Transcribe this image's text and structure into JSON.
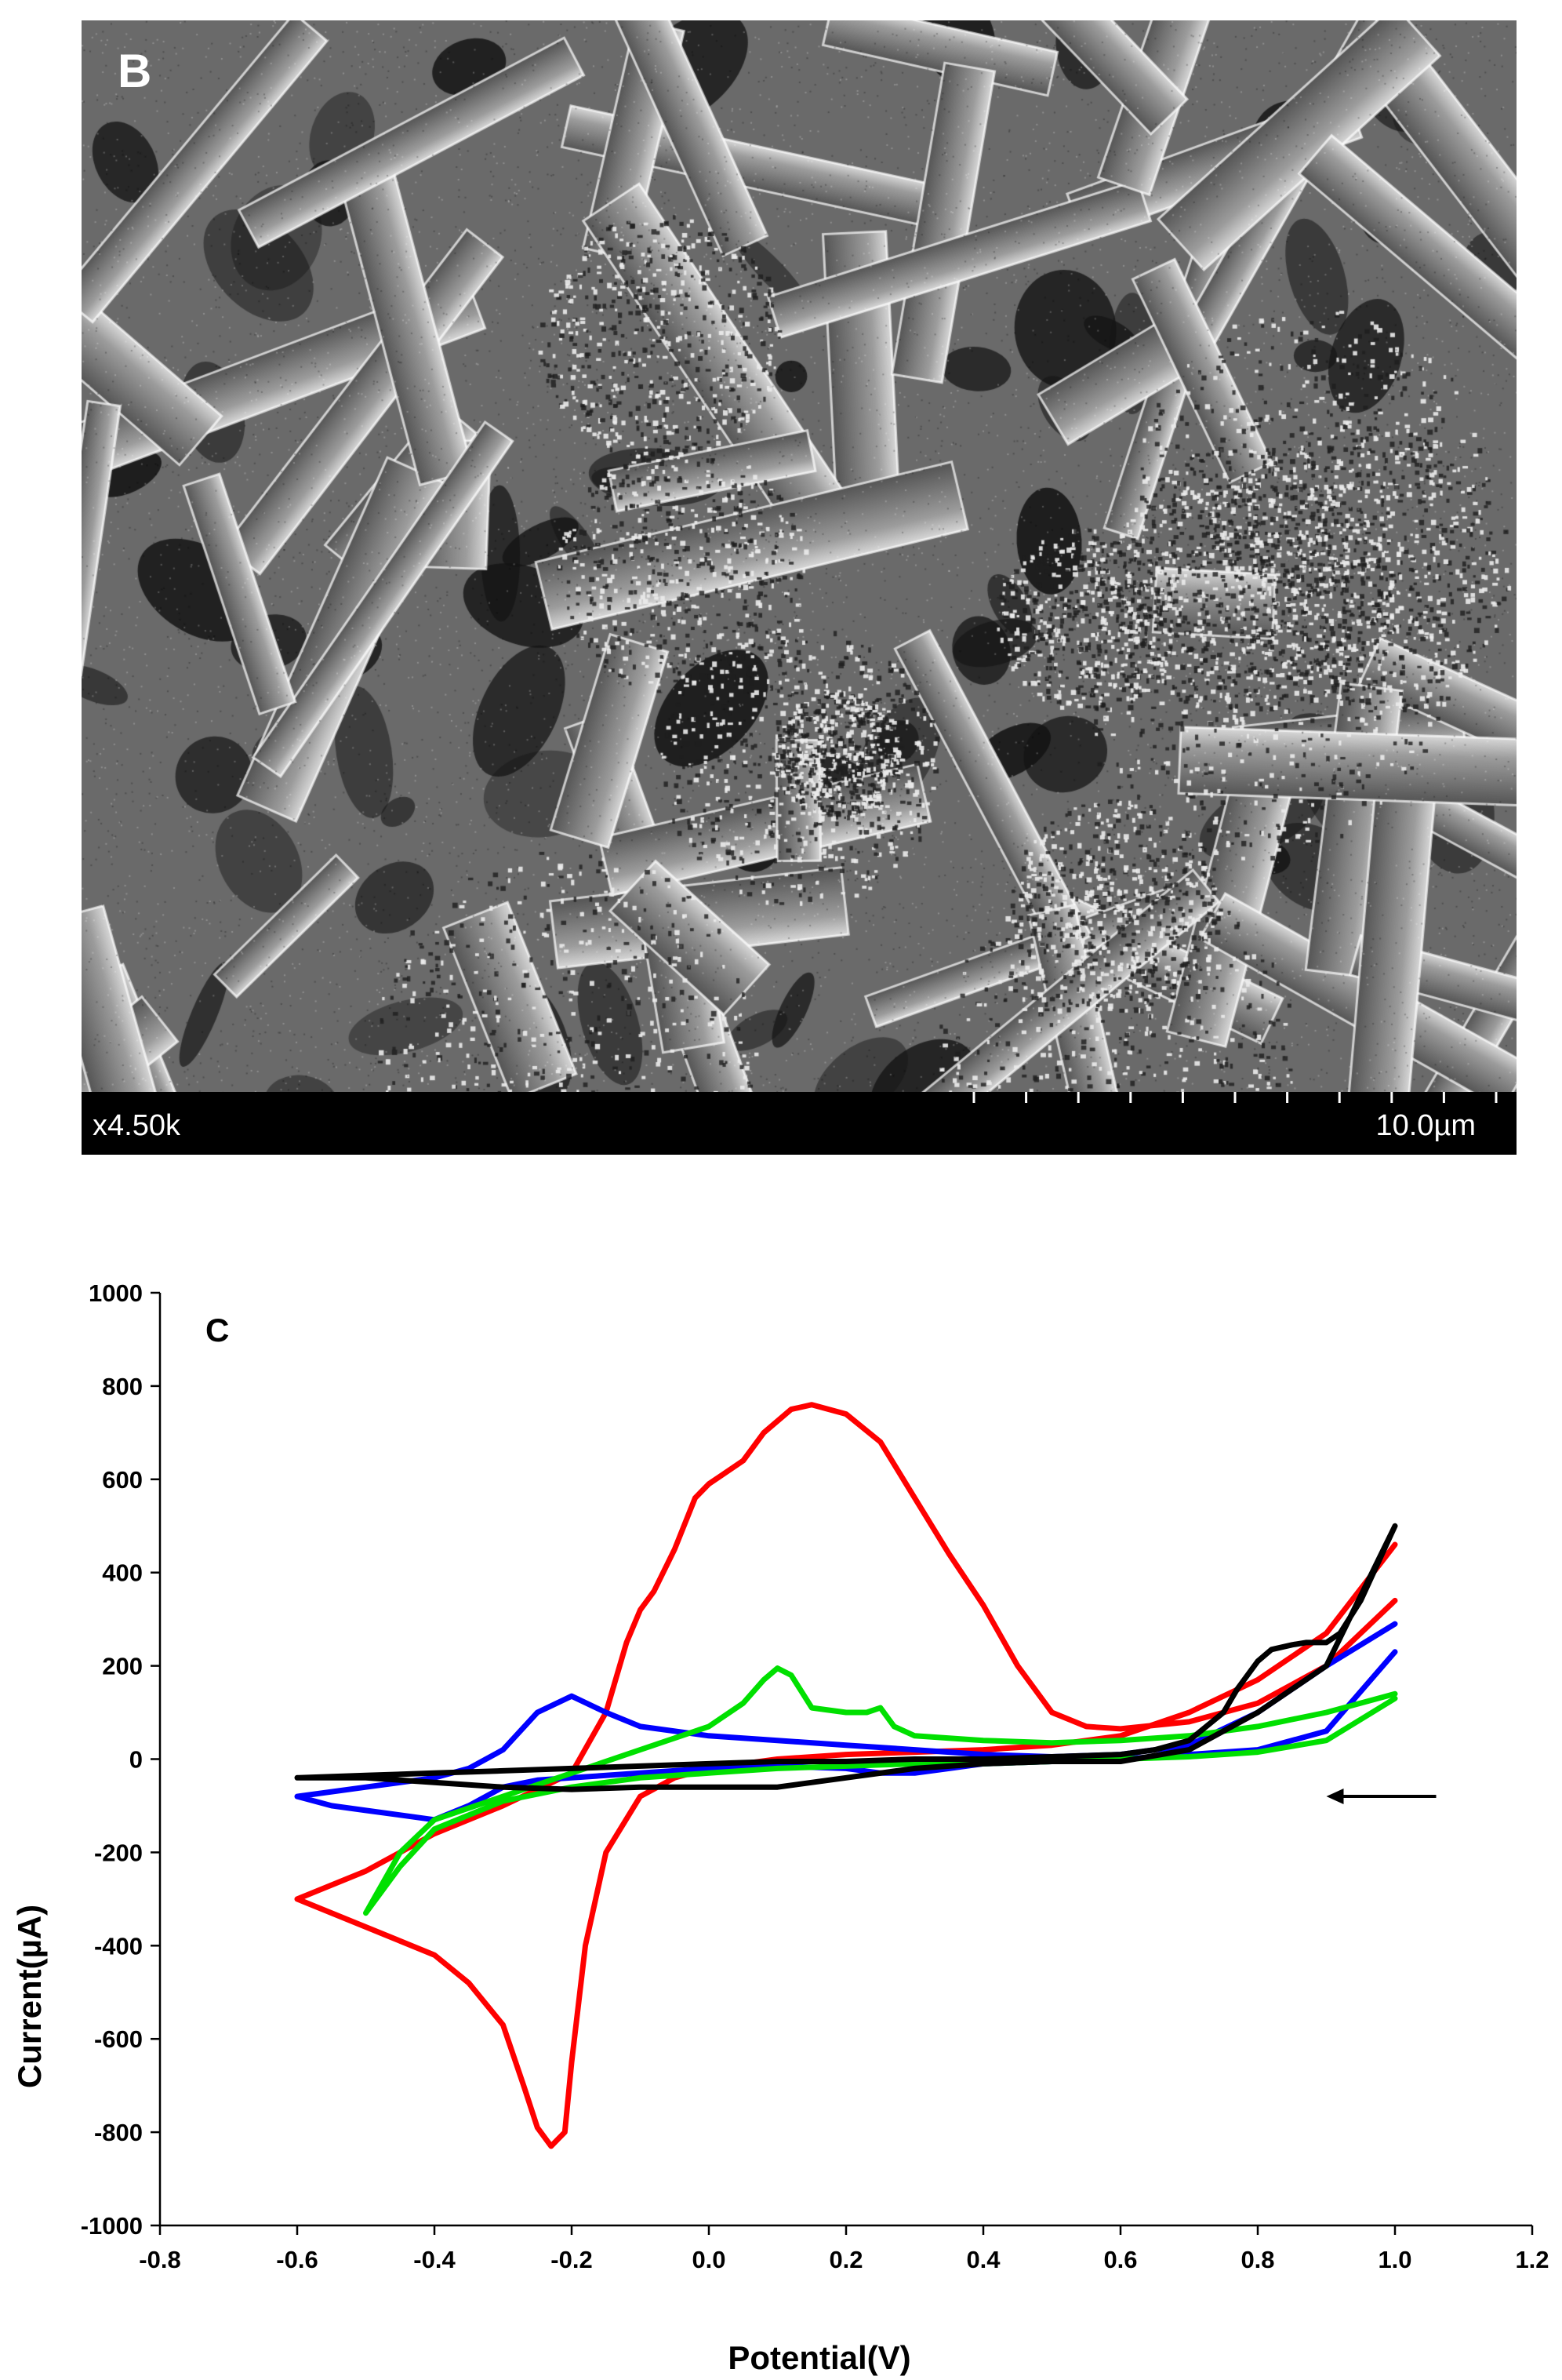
{
  "panel_b": {
    "letter": "B",
    "magnification": "x4.50k",
    "scale_bar_label": "10.0µm"
  },
  "chart_data": {
    "type": "line",
    "panel_label": "C",
    "title": "",
    "xlabel": "Potential(V)",
    "ylabel": "Current(µA)",
    "xlim": [
      -0.8,
      1.2
    ],
    "ylim": [
      -1000,
      1000
    ],
    "x_ticks": [
      -0.8,
      -0.6,
      -0.4,
      -0.2,
      0.0,
      0.2,
      0.4,
      0.6,
      0.8,
      1.0,
      1.2
    ],
    "x_tick_labels": [
      "-0.8",
      "-0.6",
      "-0.4",
      "-0.2",
      "0.0",
      "0.2",
      "0.4",
      "0.6",
      "0.8",
      "1.0",
      "1.2"
    ],
    "y_ticks": [
      -1000,
      -800,
      -600,
      -400,
      -200,
      0,
      200,
      400,
      600,
      800,
      1000
    ],
    "y_tick_labels": [
      "-1000",
      "-800",
      "-600",
      "-400",
      "-200",
      "0",
      "200",
      "400",
      "600",
      "800",
      "1000"
    ],
    "grid": false,
    "legend": "none",
    "annotation": {
      "type": "arrow",
      "direction": "left",
      "from": [
        1.06,
        -80
      ],
      "to": [
        0.9,
        -80
      ]
    },
    "series": [
      {
        "color": "#ff0000",
        "x": [
          1.0,
          0.9,
          0.8,
          0.7,
          0.6,
          0.55,
          0.5,
          0.45,
          0.4,
          0.35,
          0.3,
          0.25,
          0.2,
          0.15,
          0.12,
          0.08,
          0.05,
          0.02,
          0.0,
          -0.02,
          -0.05,
          -0.08,
          -0.1,
          -0.12,
          -0.15,
          -0.2,
          -0.3,
          -0.4,
          -0.5,
          -0.6,
          -0.5,
          -0.4,
          -0.35,
          -0.3,
          -0.27,
          -0.25,
          -0.23,
          -0.21,
          -0.2,
          -0.18,
          -0.15,
          -0.1,
          -0.05,
          0.0,
          0.1,
          0.2,
          0.3,
          0.4,
          0.5,
          0.6,
          0.7,
          0.8,
          0.9,
          1.0
        ],
        "y": [
          340,
          200,
          120,
          80,
          65,
          70,
          100,
          200,
          330,
          440,
          560,
          680,
          740,
          760,
          750,
          700,
          640,
          610,
          590,
          560,
          450,
          360,
          320,
          250,
          100,
          -30,
          -100,
          -160,
          -240,
          -300,
          -360,
          -420,
          -480,
          -570,
          -700,
          -790,
          -830,
          -800,
          -650,
          -400,
          -200,
          -80,
          -40,
          -20,
          0,
          10,
          15,
          20,
          30,
          50,
          100,
          170,
          270,
          460
        ]
      },
      {
        "color": "#0000ff",
        "x": [
          1.0,
          0.9,
          0.8,
          0.7,
          0.6,
          0.5,
          0.4,
          0.35,
          0.3,
          0.25,
          0.2,
          0.1,
          0.0,
          -0.1,
          -0.15,
          -0.2,
          -0.25,
          -0.3,
          -0.35,
          -0.4,
          -0.5,
          -0.6,
          -0.55,
          -0.5,
          -0.45,
          -0.4,
          -0.35,
          -0.3,
          -0.25,
          -0.2,
          -0.1,
          0.0,
          0.1,
          0.2,
          0.25,
          0.3,
          0.35,
          0.4,
          0.5,
          0.6,
          0.7,
          0.8,
          0.9,
          1.0
        ],
        "y": [
          290,
          200,
          100,
          30,
          10,
          5,
          10,
          15,
          20,
          25,
          30,
          40,
          50,
          70,
          100,
          135,
          100,
          20,
          -20,
          -40,
          -60,
          -80,
          -100,
          -110,
          -120,
          -130,
          -100,
          -60,
          -45,
          -40,
          -30,
          -20,
          -15,
          -20,
          -30,
          -30,
          -20,
          -10,
          -5,
          0,
          10,
          20,
          60,
          230
        ]
      },
      {
        "color": "#00e000",
        "x": [
          1.0,
          0.9,
          0.8,
          0.7,
          0.6,
          0.5,
          0.4,
          0.3,
          0.27,
          0.25,
          0.23,
          0.2,
          0.15,
          0.12,
          0.1,
          0.08,
          0.05,
          0.0,
          -0.1,
          -0.2,
          -0.3,
          -0.4,
          -0.45,
          -0.5,
          -0.45,
          -0.4,
          -0.3,
          -0.2,
          -0.1,
          0.0,
          0.1,
          0.2,
          0.3,
          0.4,
          0.5,
          0.6,
          0.7,
          0.8,
          0.9,
          1.0
        ],
        "y": [
          140,
          100,
          70,
          50,
          40,
          35,
          40,
          50,
          70,
          110,
          100,
          100,
          110,
          180,
          195,
          170,
          120,
          70,
          20,
          -30,
          -80,
          -130,
          -200,
          -330,
          -230,
          -150,
          -90,
          -60,
          -40,
          -30,
          -20,
          -15,
          -10,
          -10,
          -5,
          0,
          5,
          15,
          40,
          130
        ]
      },
      {
        "color": "#000000",
        "x": [
          1.0,
          0.95,
          0.92,
          0.9,
          0.87,
          0.85,
          0.82,
          0.8,
          0.77,
          0.75,
          0.7,
          0.65,
          0.6,
          0.5,
          0.4,
          0.3,
          0.2,
          0.1,
          0.0,
          -0.1,
          -0.2,
          -0.3,
          -0.4,
          -0.5,
          -0.6,
          -0.5,
          -0.4,
          -0.3,
          -0.2,
          -0.1,
          0.0,
          0.1,
          0.2,
          0.3,
          0.4,
          0.5,
          0.6,
          0.7,
          0.8,
          0.9,
          1.0
        ],
        "y": [
          500,
          340,
          270,
          250,
          250,
          245,
          235,
          210,
          150,
          100,
          40,
          20,
          10,
          5,
          0,
          0,
          -5,
          -5,
          -10,
          -15,
          -20,
          -25,
          -30,
          -35,
          -40,
          -40,
          -50,
          -60,
          -65,
          -60,
          -60,
          -60,
          -40,
          -20,
          -10,
          -5,
          -5,
          20,
          100,
          200,
          500
        ]
      }
    ]
  }
}
